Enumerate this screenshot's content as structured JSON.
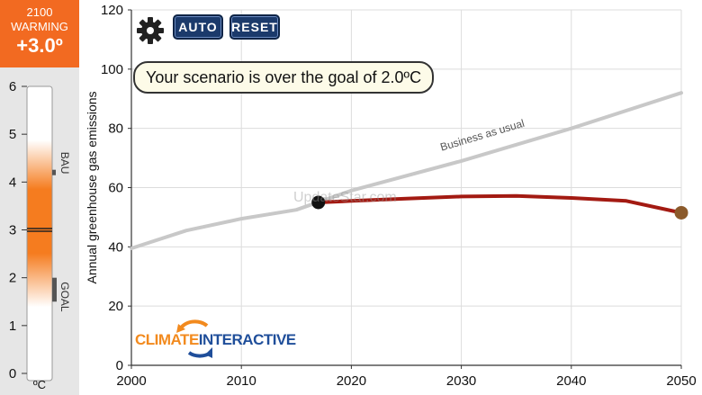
{
  "header": {
    "year_label": "2100",
    "warming_label": "WARMING",
    "warming_value": "+3.0º"
  },
  "thermometer": {
    "ticks": [
      "0",
      "1",
      "2",
      "3",
      "4",
      "5",
      "6"
    ],
    "unit_label": "ºC",
    "bau_label": "BAU",
    "goal_label": "GOAL",
    "current_value": 3.0,
    "bau_value": 4.2,
    "goal_range": [
      1.5,
      2.0
    ],
    "colors": {
      "fill": "#f57c1f",
      "marker": "#555555"
    }
  },
  "controls": {
    "auto_label": "AUTO",
    "reset_label": "RESET",
    "settings_icon": "gear-icon"
  },
  "message": "Your scenario is over the goal of 2.0ºC",
  "logo": {
    "part1": "CLIMATE",
    "part2": "INTERACTIVE"
  },
  "watermark": "UpdateStar.com",
  "chart_data": {
    "type": "line",
    "ylabel": "Annual greenhouse gas emissions",
    "xlabel": "",
    "xlim": [
      2000,
      2050
    ],
    "ylim": [
      0,
      120
    ],
    "x_ticks": [
      "2000",
      "2010",
      "2020",
      "2030",
      "2040",
      "2050"
    ],
    "y_ticks": [
      "0",
      "20",
      "40",
      "60",
      "80",
      "100",
      "120"
    ],
    "grid": true,
    "series": [
      {
        "name": "Business as usual",
        "color": "#c8c8c8",
        "points": [
          [
            2000,
            39.5
          ],
          [
            2005,
            45.5
          ],
          [
            2010,
            49.5
          ],
          [
            2015,
            52.5
          ],
          [
            2020,
            59
          ],
          [
            2030,
            69
          ],
          [
            2040,
            80
          ],
          [
            2050,
            92
          ]
        ]
      },
      {
        "name": "",
        "color": "#a31a12",
        "points": [
          [
            2017,
            55
          ],
          [
            2020,
            55.5
          ],
          [
            2025,
            56.3
          ],
          [
            2030,
            57
          ],
          [
            2035,
            57.2
          ],
          [
            2040,
            56.5
          ],
          [
            2045,
            55.5
          ],
          [
            2050,
            51.5
          ]
        ]
      }
    ],
    "handles": [
      {
        "x": 2017,
        "y": 55,
        "color": "#111111"
      },
      {
        "x": 2050,
        "y": 51.5,
        "color": "#8b5a2b"
      }
    ]
  }
}
